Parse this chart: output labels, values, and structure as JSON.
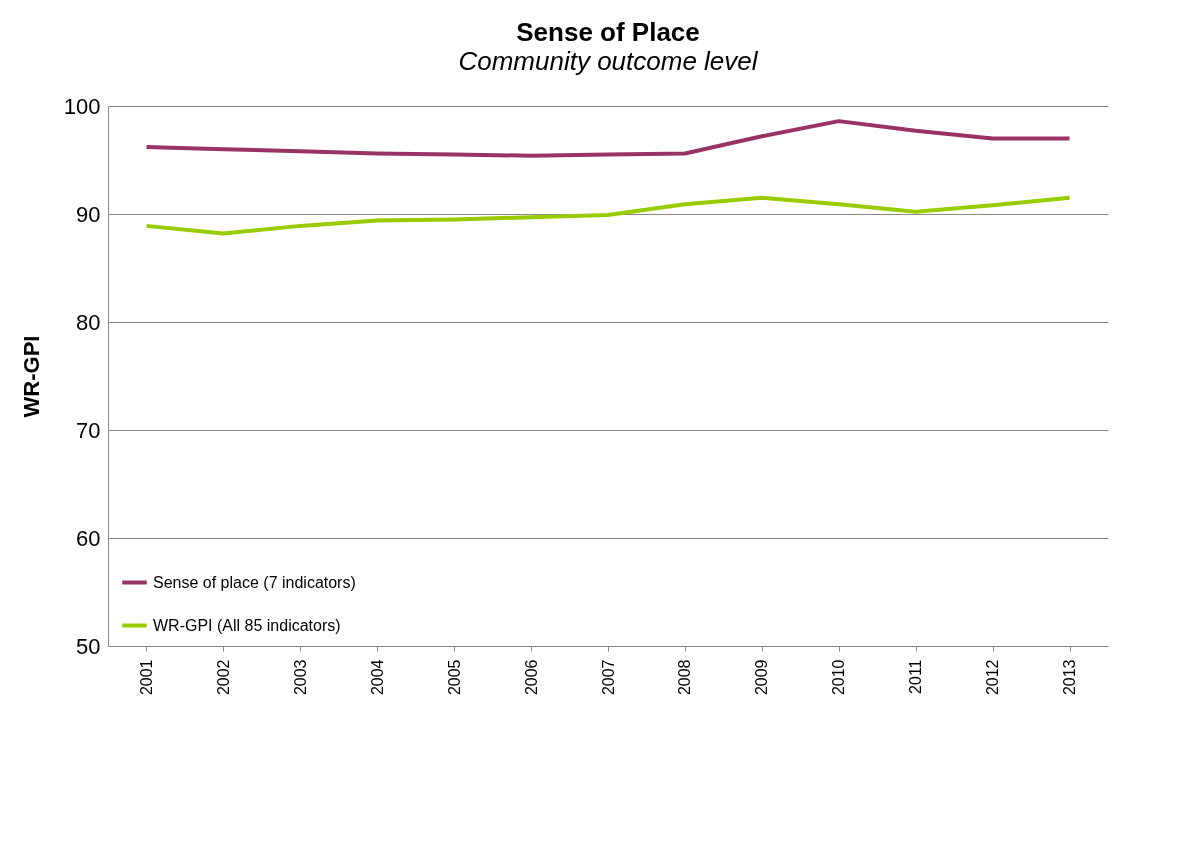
{
  "chart_data": {
    "type": "line",
    "title": "Sense of Place",
    "subtitle": "Community outcome level",
    "ylabel": "WR-GPI",
    "categories": [
      "2001",
      "2002",
      "2003",
      "2004",
      "2005",
      "2006",
      "2007",
      "2008",
      "2009",
      "2010",
      "2011",
      "2012",
      "2013"
    ],
    "series": [
      {
        "name": "Sense of place (7 indicators)",
        "color": "#993366",
        "values": [
          96.2,
          96.0,
          95.8,
          95.6,
          95.5,
          95.4,
          95.5,
          95.6,
          97.2,
          98.6,
          97.7,
          97.0,
          97.0
        ]
      },
      {
        "name": "WR-GPI (All 85 indicators)",
        "color": "#99cc00",
        "values": [
          88.9,
          88.2,
          88.9,
          89.4,
          89.5,
          89.7,
          89.9,
          90.9,
          91.5,
          90.9,
          90.2,
          90.8,
          91.5
        ]
      }
    ],
    "ylim": [
      50,
      100
    ],
    "yticks": [
      50,
      60,
      70,
      80,
      90,
      100
    ],
    "grid": "y",
    "legend": "bottom left",
    "marker": "none",
    "line_style": "solid"
  }
}
